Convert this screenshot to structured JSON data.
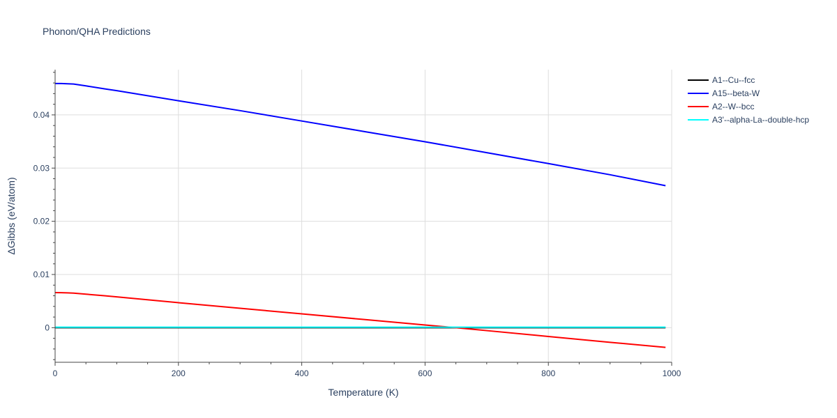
{
  "chart_data": {
    "type": "line",
    "title": "Phonon/QHA Predictions",
    "xlabel": "Temperature (K)",
    "ylabel": "ΔGibbs (eV/atom)",
    "xlim": [
      0,
      1000
    ],
    "ylim": [
      -0.0065,
      0.0485
    ],
    "xticks": [
      0,
      200,
      400,
      600,
      800,
      1000
    ],
    "xtick_labels": [
      "0",
      "200",
      "400",
      "600",
      "800",
      "1000"
    ],
    "yticks": [
      0,
      0.01,
      0.02,
      0.03,
      0.04
    ],
    "ytick_labels": [
      "0",
      "0.01",
      "0.02",
      "0.03",
      "0.04"
    ],
    "grid": true,
    "legend_position": "top-right, outside plot",
    "series": [
      {
        "name": "A1--Cu--fcc",
        "color": "#000000",
        "x": [
          0,
          990
        ],
        "y": [
          0,
          0
        ]
      },
      {
        "name": "A15--beta-W",
        "color": "#0000ff",
        "x": [
          0,
          10,
          20,
          30,
          50,
          80,
          100,
          200,
          300,
          400,
          500,
          600,
          700,
          800,
          900,
          990
        ],
        "y": [
          0.0459,
          0.0459,
          0.04585,
          0.0458,
          0.04545,
          0.0449,
          0.04455,
          0.04265,
          0.0408,
          0.03885,
          0.0369,
          0.03495,
          0.0329,
          0.03085,
          0.02875,
          0.0267
        ]
      },
      {
        "name": "A2--W--bcc",
        "color": "#ff0000",
        "x": [
          0,
          10,
          20,
          30,
          50,
          80,
          100,
          200,
          300,
          400,
          500,
          600,
          650,
          700,
          800,
          900,
          990
        ],
        "y": [
          0.0066,
          0.00658,
          0.00655,
          0.0065,
          0.0063,
          0.006,
          0.0058,
          0.0047,
          0.00365,
          0.0026,
          0.00155,
          0.0005,
          0.0,
          -0.00055,
          -0.00165,
          -0.00275,
          -0.0037
        ]
      },
      {
        "name": "A3'--alpha-La--double-hcp",
        "color": "#00ffff",
        "x": [
          0,
          990
        ],
        "y": [
          0.0001,
          0.0001
        ]
      }
    ]
  }
}
